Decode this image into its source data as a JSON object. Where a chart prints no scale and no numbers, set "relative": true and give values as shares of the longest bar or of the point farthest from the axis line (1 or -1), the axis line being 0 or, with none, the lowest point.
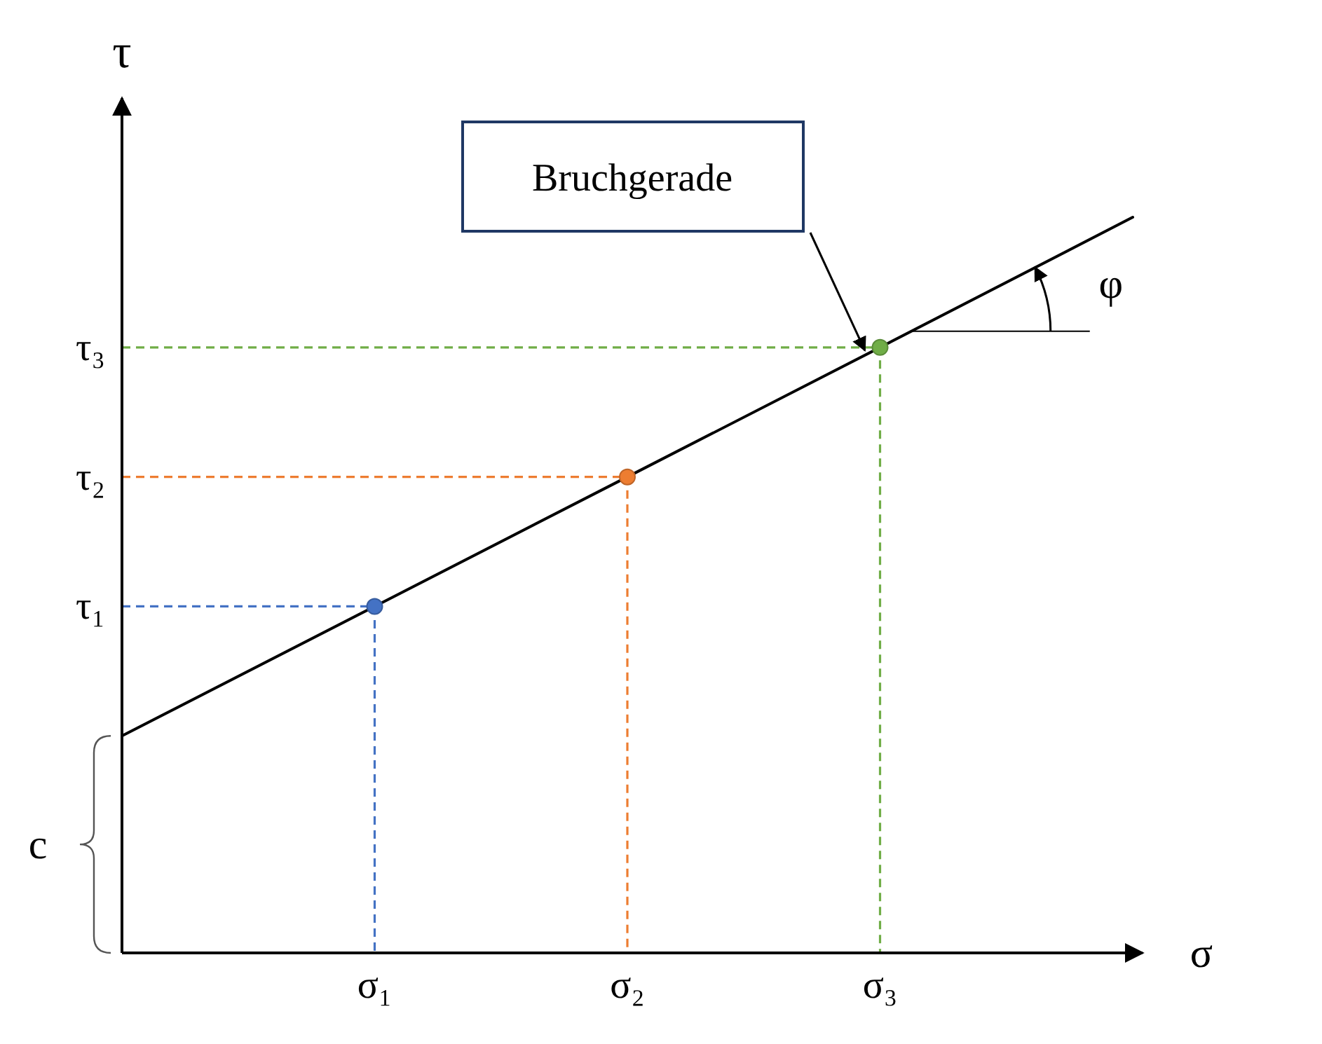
{
  "chart_data": {
    "type": "line",
    "relative": true,
    "xlabel": "σ",
    "ylabel": "τ",
    "grid": false,
    "categories": [
      null,
      "σ₁",
      "σ₂",
      "σ₃",
      null
    ],
    "series": [
      {
        "color": "#000000",
        "line_style": "solid",
        "marker": "none",
        "values": [
          0.295,
          0.471,
          0.647,
          0.823,
          1
        ]
      },
      {
        "type": "scatter",
        "color": "#4472c4",
        "marker": "circle",
        "values": [
          null,
          0.471,
          null,
          null,
          null
        ]
      },
      {
        "type": "scatter",
        "color": "#ed7d31",
        "marker": "circle",
        "values": [
          null,
          null,
          0.647,
          null,
          null
        ]
      },
      {
        "type": "scatter",
        "color": "#70ad47",
        "marker": "circle",
        "values": [
          null,
          null,
          null,
          0.823,
          null
        ]
      }
    ],
    "annotations": [
      "Bruchgerade",
      "φ",
      "c",
      "τ₁",
      "τ₂",
      "τ₃"
    ]
  }
}
